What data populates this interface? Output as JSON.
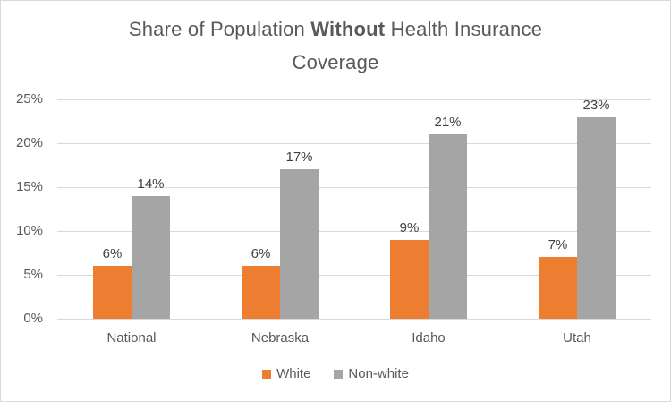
{
  "chart_data": {
    "type": "bar",
    "title": "Share of Population Without Health Insurance Coverage",
    "title_parts": {
      "prefix": "Share of Population ",
      "bold": "Without",
      "suffix": " Health Insurance",
      "line2": "Coverage"
    },
    "categories": [
      "National",
      "Nebraska",
      "Idaho",
      "Utah"
    ],
    "series": [
      {
        "name": "White",
        "color": "#ED7D31",
        "values": [
          6,
          6,
          9,
          7
        ],
        "data_labels": [
          "6%",
          "6%",
          "9%",
          "7%"
        ]
      },
      {
        "name": "Non-white",
        "color": "#A5A5A5",
        "values": [
          14,
          17,
          21,
          23
        ],
        "data_labels": [
          "14%",
          "17%",
          "21%",
          "23%"
        ]
      }
    ],
    "xlabel": "",
    "ylabel": "",
    "ylim": [
      0,
      25
    ],
    "ytick_step": 5,
    "ytick_labels": [
      "0%",
      "5%",
      "10%",
      "15%",
      "20%",
      "25%"
    ],
    "grid": true,
    "legend_position": "bottom"
  },
  "colors": {
    "background": "#FFFFFF",
    "border": "#D9D9D9",
    "gridline": "#D9D9D9",
    "axis_line": "#D9D9D9",
    "title_text": "#595959",
    "tick_text": "#595959",
    "data_label_text": "#404040"
  }
}
